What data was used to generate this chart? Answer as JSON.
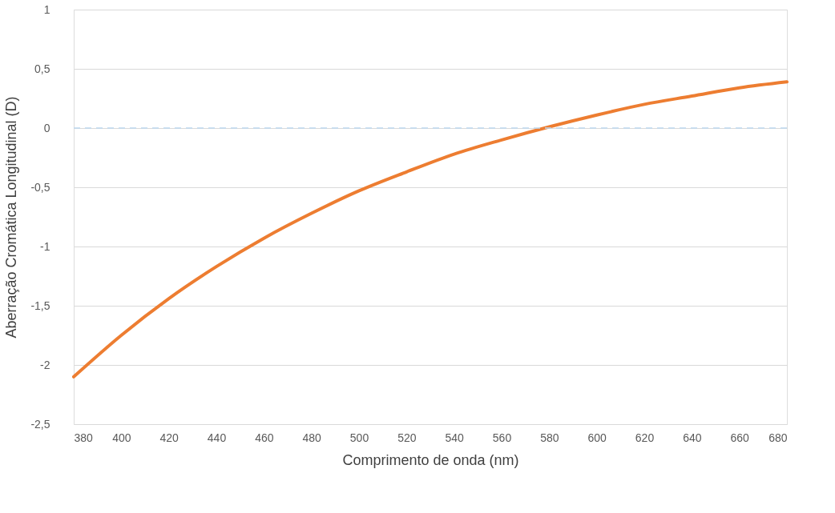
{
  "chart_data": {
    "type": "line",
    "xlabel": "Comprimento de onda (nm)",
    "ylabel": "Aberração Cromática Longitudinal (D)",
    "x": [
      380,
      400,
      420,
      440,
      460,
      480,
      500,
      520,
      540,
      560,
      580,
      600,
      620,
      640,
      660,
      680
    ],
    "series": [
      {
        "color": "#ed7d31",
        "values": [
          -2.1,
          -1.75,
          -1.44,
          -1.17,
          -0.93,
          -0.72,
          -0.53,
          -0.37,
          -0.22,
          -0.1,
          0.01,
          0.11,
          0.2,
          0.27,
          0.34,
          0.39
        ]
      }
    ],
    "xlim": [
      380,
      680
    ],
    "xticks": [
      380,
      400,
      420,
      440,
      460,
      480,
      500,
      520,
      540,
      560,
      580,
      600,
      620,
      640,
      660,
      680
    ],
    "ylim": [
      -2.5,
      1
    ],
    "yticks": [
      {
        "value": -2.5,
        "label": "-2,5"
      },
      -2,
      {
        "value": -1.5,
        "label": "-1,5"
      },
      -1,
      {
        "value": -0.5,
        "label": "-0,5"
      },
      0,
      {
        "value": 0.5,
        "label": "0,5"
      },
      1
    ],
    "ref_lines": [
      {
        "axis": "y",
        "value": 0,
        "color": "#bdd7ee",
        "line_style": "dashed"
      }
    ],
    "grid": "y",
    "marker": "none",
    "line_style": "solid"
  }
}
